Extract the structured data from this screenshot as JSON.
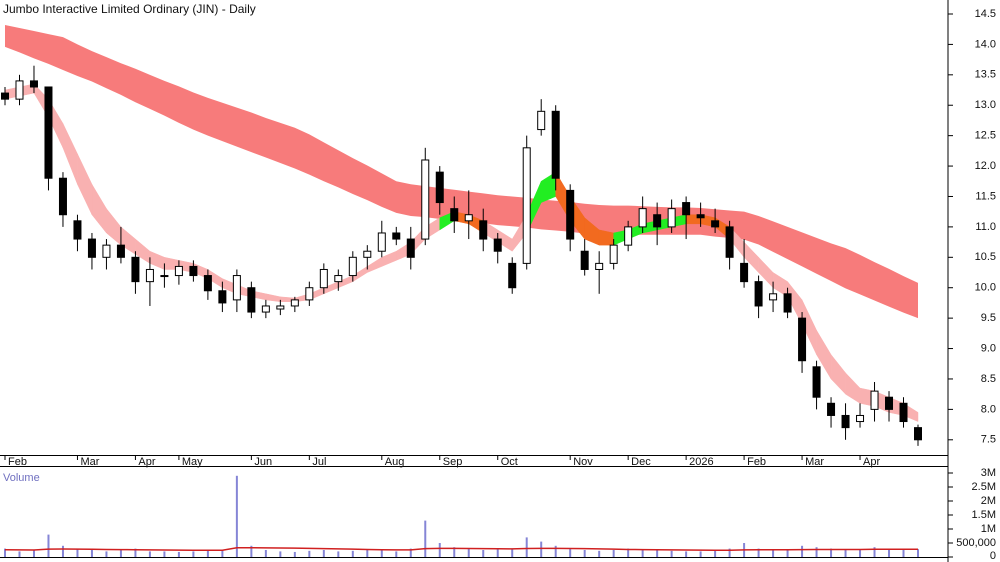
{
  "chart_data": {
    "type": "candlestick",
    "title": "Jumbo Interactive Limited Ordinary (JIN) - Daily",
    "categories": [
      "Feb",
      null,
      null,
      null,
      null,
      "Mar",
      null,
      null,
      null,
      "Apr",
      null,
      null,
      "May",
      null,
      null,
      null,
      null,
      "Jun",
      null,
      null,
      null,
      "Jul",
      null,
      null,
      null,
      null,
      "Aug",
      null,
      null,
      null,
      "Sep",
      null,
      null,
      null,
      "Oct",
      null,
      null,
      null,
      null,
      "Nov",
      null,
      null,
      null,
      "Dec",
      null,
      null,
      null,
      "2026",
      null,
      null,
      null,
      "Feb",
      null,
      null,
      null,
      "Mar",
      null,
      null,
      null,
      "Apr",
      null,
      null,
      null,
      null
    ],
    "open": [
      13.2,
      13.1,
      13.4,
      13.3,
      11.8,
      11.1,
      10.8,
      10.5,
      10.7,
      10.5,
      10.1,
      10.2,
      10.2,
      10.35,
      10.2,
      9.95,
      9.8,
      10.0,
      9.6,
      9.65,
      9.7,
      9.8,
      10.0,
      10.1,
      10.2,
      10.5,
      10.6,
      10.9,
      10.8,
      10.8,
      11.9,
      11.3,
      11.1,
      11.1,
      10.8,
      10.4,
      10.4,
      12.6,
      12.9,
      11.6,
      10.6,
      10.3,
      10.4,
      10.7,
      11.0,
      11.2,
      11.0,
      11.4,
      11.2,
      11.1,
      11.0,
      10.4,
      10.1,
      9.8,
      9.9,
      9.5,
      8.7,
      8.1,
      7.9,
      7.8,
      8.0,
      8.2,
      8.1,
      7.7
    ],
    "high": [
      13.3,
      13.5,
      13.65,
      13.3,
      11.9,
      11.2,
      10.9,
      10.8,
      11.0,
      10.6,
      10.5,
      10.4,
      10.45,
      10.45,
      10.3,
      10.1,
      10.3,
      10.1,
      9.8,
      9.8,
      9.85,
      10.1,
      10.4,
      10.3,
      10.6,
      10.7,
      11.1,
      11.0,
      11.0,
      12.3,
      12.0,
      11.5,
      11.6,
      11.3,
      10.9,
      10.5,
      12.5,
      13.1,
      13.0,
      11.7,
      10.8,
      10.6,
      10.8,
      11.1,
      11.5,
      11.4,
      11.45,
      11.5,
      11.4,
      11.3,
      11.1,
      10.8,
      10.2,
      10.1,
      10.0,
      9.6,
      8.8,
      8.2,
      8.1,
      8.1,
      8.45,
      8.3,
      8.2,
      7.75
    ],
    "low": [
      13.0,
      13.0,
      13.2,
      11.6,
      11.0,
      10.6,
      10.3,
      10.3,
      10.4,
      9.9,
      9.7,
      10.0,
      10.05,
      10.1,
      9.8,
      9.6,
      9.6,
      9.5,
      9.5,
      9.55,
      9.6,
      9.7,
      9.9,
      9.95,
      10.1,
      10.3,
      10.5,
      10.7,
      10.3,
      10.7,
      11.2,
      10.9,
      10.8,
      10.6,
      10.4,
      9.9,
      10.3,
      12.5,
      11.6,
      10.6,
      10.2,
      9.9,
      10.3,
      10.6,
      10.9,
      10.7,
      10.9,
      10.8,
      11.0,
      10.9,
      10.3,
      10.0,
      9.5,
      9.6,
      9.5,
      8.6,
      8.0,
      7.7,
      7.5,
      7.7,
      7.8,
      7.8,
      7.7,
      7.4
    ],
    "close": [
      13.1,
      13.4,
      13.3,
      11.8,
      11.2,
      10.8,
      10.5,
      10.7,
      10.5,
      10.1,
      10.3,
      10.2,
      10.35,
      10.2,
      9.95,
      9.75,
      10.2,
      9.6,
      9.7,
      9.7,
      9.8,
      10.0,
      10.3,
      10.2,
      10.5,
      10.6,
      10.9,
      10.8,
      10.5,
      12.1,
      11.4,
      11.1,
      11.2,
      10.8,
      10.6,
      10.0,
      12.3,
      12.9,
      11.8,
      10.8,
      10.3,
      10.4,
      10.7,
      11.0,
      11.3,
      11.0,
      11.3,
      11.2,
      11.15,
      11.0,
      10.5,
      10.1,
      9.7,
      9.9,
      9.6,
      8.8,
      8.2,
      7.9,
      7.7,
      7.9,
      8.3,
      8.0,
      7.8,
      7.5
    ],
    "up_color": "#ffffff",
    "down_color": "#000000",
    "long_band": {
      "color": "#f77b7b",
      "upper": [
        14.32,
        14.27,
        14.22,
        14.17,
        14.12,
        14.0,
        13.89,
        13.79,
        13.69,
        13.6,
        13.5,
        13.4,
        13.31,
        13.21,
        13.12,
        13.04,
        12.96,
        12.88,
        12.79,
        12.71,
        12.63,
        12.52,
        12.39,
        12.26,
        12.13,
        12.01,
        11.88,
        11.75,
        11.7,
        11.67,
        11.64,
        11.61,
        11.58,
        11.55,
        11.52,
        11.5,
        11.48,
        11.45,
        11.43,
        11.41,
        11.38,
        11.36,
        11.35,
        11.35,
        11.34,
        11.33,
        11.32,
        11.32,
        11.31,
        11.29,
        11.27,
        11.25,
        11.18,
        11.09,
        11.0,
        10.91,
        10.82,
        10.73,
        10.65,
        10.54,
        10.42,
        10.31,
        10.19,
        10.08
      ],
      "lower": [
        13.96,
        13.87,
        13.77,
        13.68,
        13.58,
        13.48,
        13.39,
        13.28,
        13.17,
        13.05,
        12.94,
        12.83,
        12.71,
        12.6,
        12.5,
        12.41,
        12.32,
        12.23,
        12.14,
        12.05,
        11.96,
        11.86,
        11.75,
        11.65,
        11.54,
        11.44,
        11.33,
        11.23,
        11.18,
        11.16,
        11.13,
        11.11,
        11.08,
        11.06,
        11.03,
        11.01,
        10.99,
        10.96,
        10.94,
        10.92,
        10.89,
        10.87,
        10.87,
        10.87,
        10.87,
        10.87,
        10.87,
        10.87,
        10.87,
        10.84,
        10.82,
        10.79,
        10.71,
        10.59,
        10.47,
        10.35,
        10.23,
        10.11,
        9.99,
        9.89,
        9.79,
        9.69,
        9.59,
        9.5
      ]
    },
    "short_band": {
      "color": "#f9b1b1",
      "cross_up_color": "#22ee22",
      "cross_down_color": "#f26a1f",
      "upper": [
        13.25,
        13.3,
        13.35,
        13.1,
        12.7,
        12.2,
        11.7,
        11.3,
        11.0,
        10.8,
        10.6,
        10.5,
        10.45,
        10.4,
        10.3,
        10.15,
        10.05,
        9.95,
        9.9,
        9.85,
        9.83,
        9.9,
        10.0,
        10.1,
        10.2,
        10.35,
        10.5,
        10.6,
        10.75,
        11.0,
        11.15,
        11.25,
        11.2,
        11.1,
        10.95,
        10.8,
        11.2,
        11.75,
        11.9,
        11.5,
        11.15,
        10.95,
        10.9,
        10.95,
        11.05,
        11.1,
        11.15,
        11.2,
        11.2,
        11.15,
        11.0,
        10.75,
        10.5,
        10.25,
        10.1,
        9.8,
        9.3,
        8.9,
        8.6,
        8.35,
        8.3,
        8.2,
        8.1,
        7.95
      ],
      "lower": [
        13.1,
        13.15,
        13.2,
        12.8,
        12.3,
        11.7,
        11.2,
        10.9,
        10.7,
        10.55,
        10.4,
        10.3,
        10.3,
        10.25,
        10.15,
        10.0,
        9.9,
        9.85,
        9.8,
        9.77,
        9.77,
        9.8,
        9.9,
        10.0,
        10.1,
        10.25,
        10.35,
        10.45,
        10.55,
        10.8,
        10.95,
        11.1,
        11.05,
        10.9,
        10.75,
        10.6,
        10.9,
        11.4,
        11.5,
        11.1,
        10.8,
        10.7,
        10.7,
        10.8,
        10.9,
        10.95,
        11.0,
        11.05,
        11.05,
        11.0,
        10.8,
        10.5,
        10.25,
        10.0,
        9.85,
        9.4,
        8.9,
        8.5,
        8.25,
        8.1,
        8.05,
        7.95,
        7.9,
        7.8
      ]
    },
    "ylim": [
      7.25,
      14.73
    ],
    "yticks": [
      7.5,
      {
        "value": 8,
        "label": "8.0"
      },
      8.5,
      {
        "value": 9,
        "label": "9.0"
      },
      9.5,
      {
        "value": 10,
        "label": "10.0"
      },
      10.5,
      {
        "value": 11,
        "label": "11.0"
      },
      11.5,
      {
        "value": 12,
        "label": "12.0"
      },
      12.5,
      {
        "value": 13,
        "label": "13.0"
      },
      13.5,
      {
        "value": 14,
        "label": "14.0"
      },
      14.5
    ],
    "volume": {
      "label": "Volume",
      "color": "#8585d6",
      "ma_color": "#d02020",
      "label_color": "#7070c0",
      "values": [
        300000,
        200000,
        250000,
        800000,
        400000,
        300000,
        250000,
        200000,
        250000,
        300000,
        200000,
        200000,
        180000,
        200000,
        220000,
        250000,
        2900000,
        400000,
        250000,
        200000,
        180000,
        220000,
        250000,
        200000,
        220000,
        250000,
        280000,
        200000,
        300000,
        1300000,
        500000,
        350000,
        300000,
        250000,
        280000,
        300000,
        700000,
        550000,
        400000,
        300000,
        250000,
        220000,
        250000,
        300000,
        280000,
        250000,
        220000,
        200000,
        200000,
        220000,
        300000,
        500000,
        300000,
        250000,
        280000,
        400000,
        350000,
        300000,
        280000,
        250000,
        350000,
        300000,
        250000,
        280000
      ],
      "ma": [
        260000,
        255000,
        250000,
        280000,
        285000,
        280000,
        275000,
        270000,
        265000,
        260000,
        255000,
        250000,
        245000,
        240000,
        240000,
        240000,
        330000,
        330000,
        325000,
        320000,
        315000,
        310000,
        300000,
        290000,
        280000,
        270000,
        260000,
        255000,
        255000,
        300000,
        310000,
        310000,
        305000,
        300000,
        295000,
        290000,
        305000,
        310000,
        310000,
        305000,
        300000,
        290000,
        280000,
        270000,
        265000,
        260000,
        255000,
        250000,
        245000,
        240000,
        240000,
        255000,
        260000,
        260000,
        260000,
        265000,
        270000,
        270000,
        270000,
        270000,
        275000,
        275000,
        275000,
        275000
      ],
      "ylim": [
        0,
        3250000
      ],
      "yticks": [
        0,
        {
          "value": 500000,
          "label": "500,000"
        },
        {
          "value": 1000000,
          "label": "1M"
        },
        {
          "value": 1500000,
          "label": "1.5M"
        },
        {
          "value": 2000000,
          "label": "2M"
        },
        {
          "value": 2500000,
          "label": "2.5M"
        },
        {
          "value": 3000000,
          "label": "3M"
        }
      ]
    }
  }
}
